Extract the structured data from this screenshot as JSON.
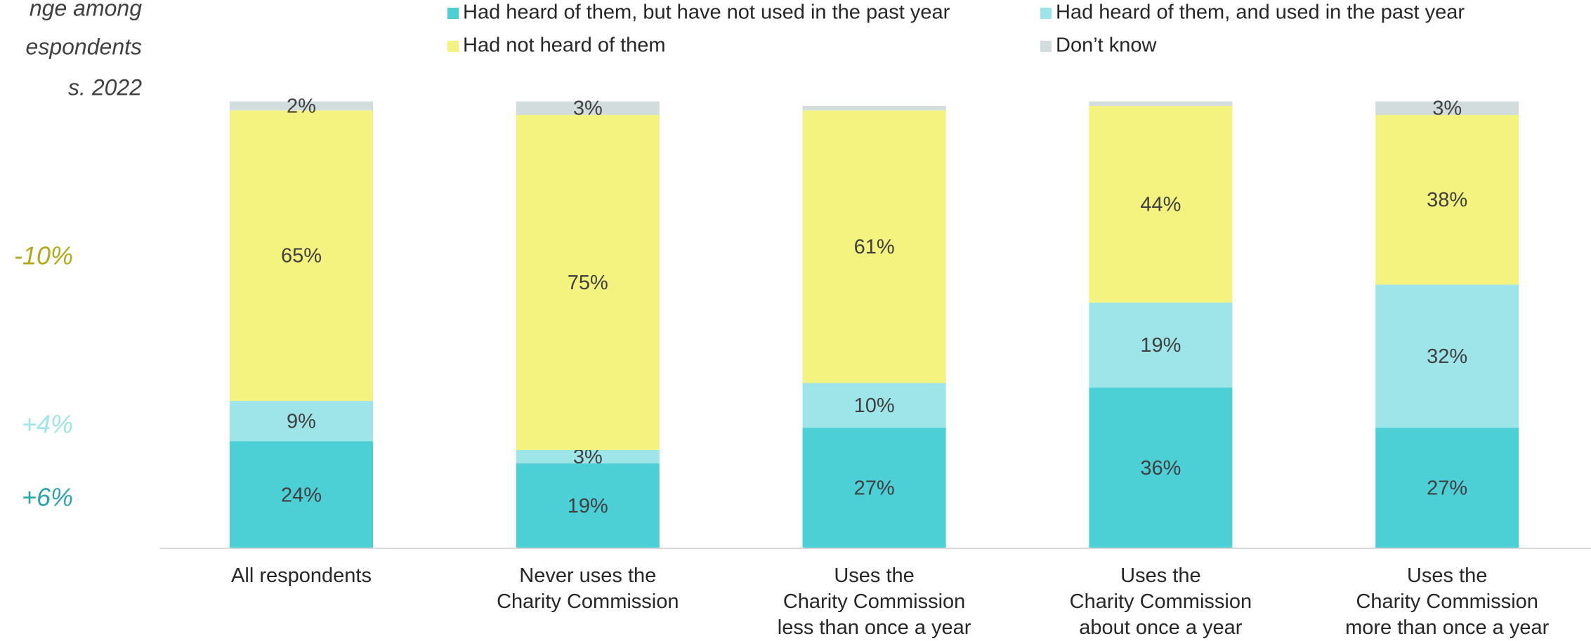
{
  "chart_data": {
    "type": "stacked_bar",
    "side_text": [
      "nge among",
      "espondents",
      "s. 2022"
    ],
    "annotations": [
      {
        "text": "-10%",
        "color": "#b3a81a"
      },
      {
        "text": "+4%",
        "color": "#9ee5e9"
      },
      {
        "text": "+6%",
        "color": "#2aa5ad"
      }
    ],
    "categories": [
      "All respondents",
      "Never uses the\nCharity Commission",
      "Uses the\nCharity Commission\nless than once a year",
      "Uses the\nCharity Commission\nabout once a year",
      "Uses the\nCharity Commission\nmore than once a year"
    ],
    "series": [
      {
        "name": "Had heard of them, but have not used in the past year",
        "color": "#4dcfd6",
        "values": [
          24,
          19,
          27,
          36,
          27
        ],
        "value_labels": [
          "24%",
          "19%",
          "27%",
          "36%",
          "27%"
        ]
      },
      {
        "name": "Had heard of them, and used in the past year",
        "color": "#9ee5e9",
        "values": [
          9,
          3,
          10,
          19,
          32
        ],
        "value_labels": [
          "9%",
          "3%",
          "10%",
          "19%",
          "32%"
        ]
      },
      {
        "name": "Had not heard of them",
        "color": "#f5f37f",
        "values": [
          65,
          75,
          61,
          44,
          38
        ],
        "value_labels": [
          "65%",
          "75%",
          "61%",
          "44%",
          "38%"
        ]
      },
      {
        "name": "Don’t know",
        "color": "#d3dcdc",
        "values": [
          2,
          3,
          1,
          1,
          3
        ],
        "value_labels": [
          "2%",
          "3%",
          null,
          null,
          "3%"
        ]
      }
    ],
    "ylim": [
      0,
      100
    ],
    "legend": "top"
  }
}
